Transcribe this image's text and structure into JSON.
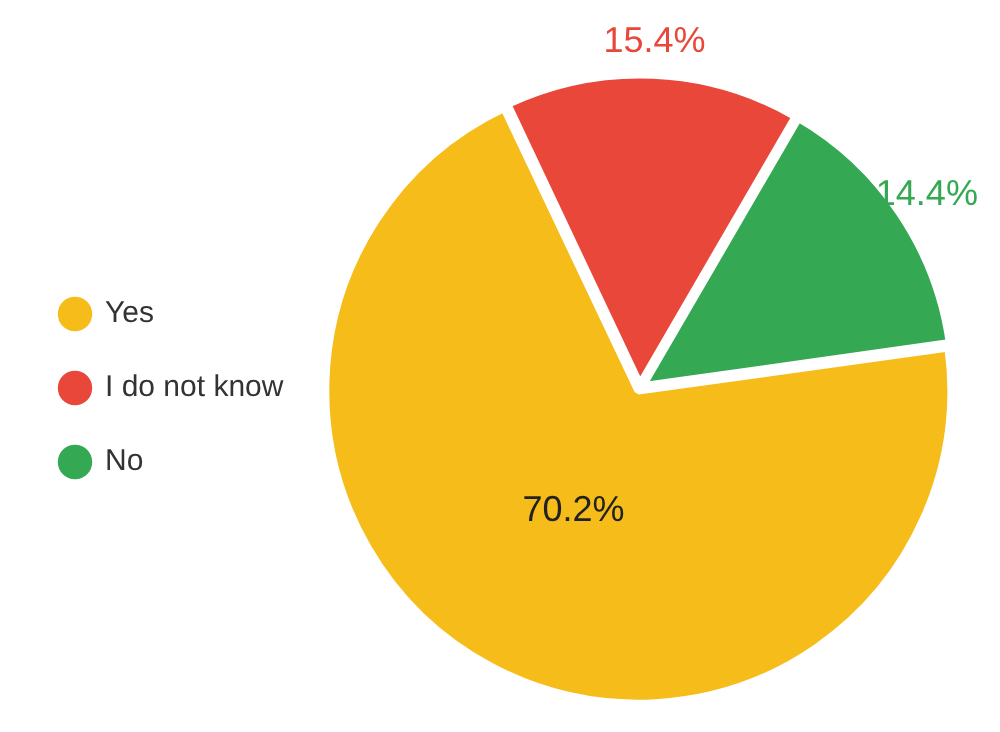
{
  "chart_data": {
    "type": "pie",
    "categories": [
      "Yes",
      "I do not know",
      "No"
    ],
    "values": [
      70.2,
      15.4,
      14.4
    ],
    "colors": [
      "#f6bc1a",
      "#e9473a",
      "#34a853"
    ],
    "value_labels": [
      "70.2%",
      "15.4%",
      "14.4%"
    ],
    "legend": "left"
  }
}
